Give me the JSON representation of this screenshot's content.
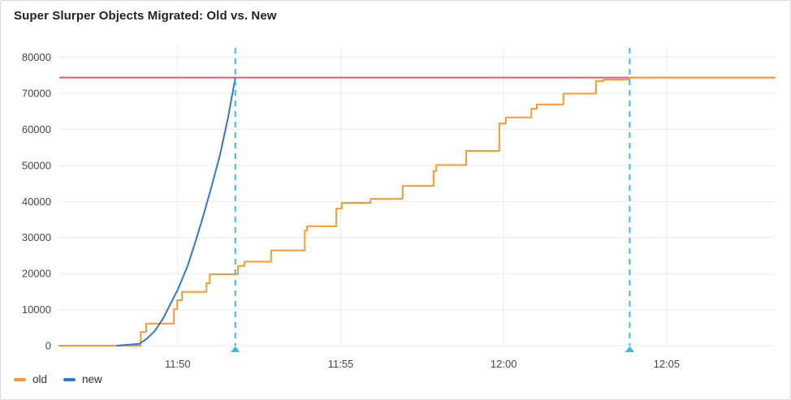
{
  "panel": {
    "title": "Super Slurper Objects Migrated: Old vs. New"
  },
  "legend": {
    "items": [
      {
        "label": "old",
        "color": "#FF9830"
      },
      {
        "label": "new",
        "color": "#3274D9"
      }
    ]
  },
  "chart_data": {
    "type": "line",
    "title": "Super Slurper Objects Migrated: Old vs. New",
    "xlabel": "",
    "ylabel": "",
    "grid": true,
    "legend_position": "bottom-left",
    "x_axis": {
      "start": "11:46:22",
      "end": "12:08:19",
      "ticks": [
        "11:50",
        "11:55",
        "12:00",
        "12:05"
      ]
    },
    "y_axis": {
      "min": 0,
      "max": 80000,
      "ticks": [
        0,
        10000,
        20000,
        30000,
        40000,
        50000,
        60000,
        70000,
        80000
      ]
    },
    "threshold": {
      "value": 74350,
      "color": "#E05C66"
    },
    "annotations": {
      "color": "#2FBFE8",
      "times": [
        "11:51:46",
        "12:03:52"
      ]
    },
    "series": [
      {
        "name": "old",
        "color": "#FF9830",
        "style": "step-after",
        "points": [
          [
            "11:46:22",
            0
          ],
          [
            "11:48:52",
            3800
          ],
          [
            "11:49:02",
            6100
          ],
          [
            "11:49:53",
            10100
          ],
          [
            "11:49:59",
            12600
          ],
          [
            "11:50:08",
            14900
          ],
          [
            "11:50:53",
            17300
          ],
          [
            "11:50:59",
            19800
          ],
          [
            "11:51:51",
            22100
          ],
          [
            "11:52:03",
            23300
          ],
          [
            "11:52:52",
            26400
          ],
          [
            "11:53:54",
            31900
          ],
          [
            "11:53:58",
            33100
          ],
          [
            "11:54:52",
            38000
          ],
          [
            "11:55:02",
            39600
          ],
          [
            "11:55:55",
            40700
          ],
          [
            "11:56:54",
            44300
          ],
          [
            "11:57:51",
            48400
          ],
          [
            "11:57:56",
            50100
          ],
          [
            "11:58:51",
            54000
          ],
          [
            "11:59:52",
            61600
          ],
          [
            "12:00:04",
            63300
          ],
          [
            "12:00:51",
            65700
          ],
          [
            "12:01:01",
            66900
          ],
          [
            "12:01:50",
            69900
          ],
          [
            "12:02:50",
            73400
          ],
          [
            "12:03:04",
            73800
          ],
          [
            "12:03:52",
            74350
          ],
          [
            "12:08:19",
            74350
          ]
        ]
      },
      {
        "name": "new",
        "color": "#3274D9",
        "style": "line",
        "points": [
          [
            "11:48:08",
            0
          ],
          [
            "11:48:49",
            500
          ],
          [
            "11:49:03",
            1900
          ],
          [
            "11:49:18",
            4100
          ],
          [
            "11:49:33",
            7500
          ],
          [
            "11:49:48",
            12000
          ],
          [
            "11:50:00",
            15500
          ],
          [
            "11:50:18",
            22000
          ],
          [
            "11:50:33",
            29000
          ],
          [
            "11:50:48",
            36500
          ],
          [
            "11:51:03",
            44500
          ],
          [
            "11:51:18",
            53000
          ],
          [
            "11:51:33",
            63500
          ],
          [
            "11:51:46",
            74250
          ]
        ]
      }
    ]
  }
}
